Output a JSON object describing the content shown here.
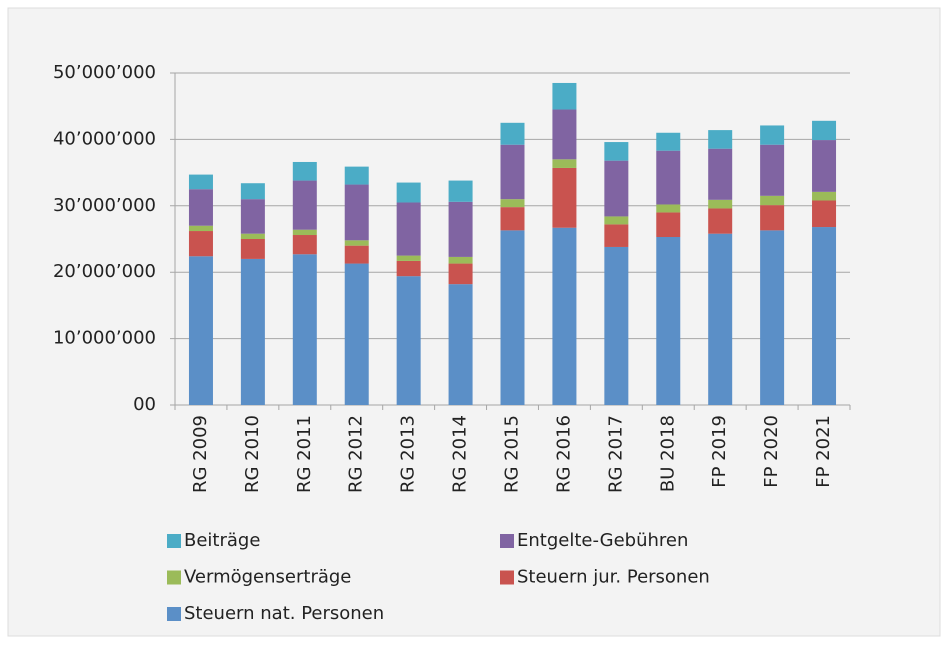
{
  "chart_data": {
    "type": "stacked_bar",
    "categories": [
      "RG 2009",
      "RG 2010",
      "RG 2011",
      "RG 2012",
      "RG 2013",
      "RG 2014",
      "RG 2015",
      "RG 2016",
      "RG 2017",
      "BU 2018",
      "FP 2019",
      "FP 2020",
      "FP 2021"
    ],
    "series": [
      {
        "name": "Steuern nat. Personen",
        "color": "#5b8fc7",
        "values": [
          22400000,
          22000000,
          22700000,
          21300000,
          19400000,
          18200000,
          26300000,
          26700000,
          23800000,
          25300000,
          25800000,
          26300000,
          26800000
        ]
      },
      {
        "name": "Steuern jur. Personen",
        "color": "#c9534f",
        "values": [
          3800000,
          3000000,
          2900000,
          2700000,
          2300000,
          3100000,
          3500000,
          9000000,
          3400000,
          3700000,
          3800000,
          3800000,
          4000000
        ]
      },
      {
        "name": "Vermögenserträge",
        "color": "#9bbb59",
        "values": [
          800000,
          800000,
          800000,
          800000,
          800000,
          1000000,
          1200000,
          1300000,
          1200000,
          1200000,
          1300000,
          1400000,
          1300000
        ]
      },
      {
        "name": "Entgelte-Gebühren",
        "color": "#8064a2",
        "values": [
          5500000,
          5200000,
          7400000,
          8400000,
          8000000,
          8300000,
          8200000,
          7500000,
          8400000,
          8100000,
          7700000,
          7700000,
          7800000
        ]
      },
      {
        "name": "Beiträge",
        "color": "#4bacc6",
        "values": [
          2200000,
          2400000,
          2800000,
          2700000,
          3000000,
          3200000,
          3300000,
          4000000,
          2800000,
          2700000,
          2800000,
          2900000,
          2900000
        ]
      }
    ],
    "ylim": [
      0,
      50000000
    ],
    "yticks": [
      {
        "value": 0,
        "label": "00"
      },
      {
        "value": 10000000,
        "label": "10’000’000"
      },
      {
        "value": 20000000,
        "label": "20’000’000"
      },
      {
        "value": 30000000,
        "label": "30’000’000"
      },
      {
        "value": 40000000,
        "label": "40’000’000"
      },
      {
        "value": 50000000,
        "label": "50’000’000"
      }
    ],
    "grid": true,
    "legend": "bottom"
  }
}
